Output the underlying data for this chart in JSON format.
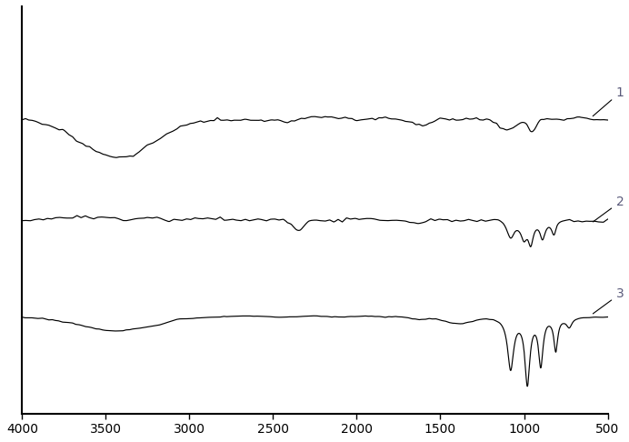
{
  "background_color": "#ffffff",
  "line_color": "#000000",
  "label_color": "#5a5a7a",
  "figsize": [
    6.92,
    4.86
  ],
  "dpi": 100,
  "xlim": [
    4000,
    500
  ],
  "ylim": [
    0.0,
    1.05
  ],
  "xticks": [
    4000,
    3500,
    3000,
    2500,
    2000,
    1500,
    1000,
    500
  ],
  "xtick_labels": [
    "4000",
    "3500",
    "3000",
    "2500",
    "2000",
    "1500",
    "1000",
    "500"
  ],
  "offsets": [
    0.76,
    0.5,
    0.25
  ],
  "scales": [
    0.1,
    0.07,
    0.18
  ],
  "seed": 10
}
